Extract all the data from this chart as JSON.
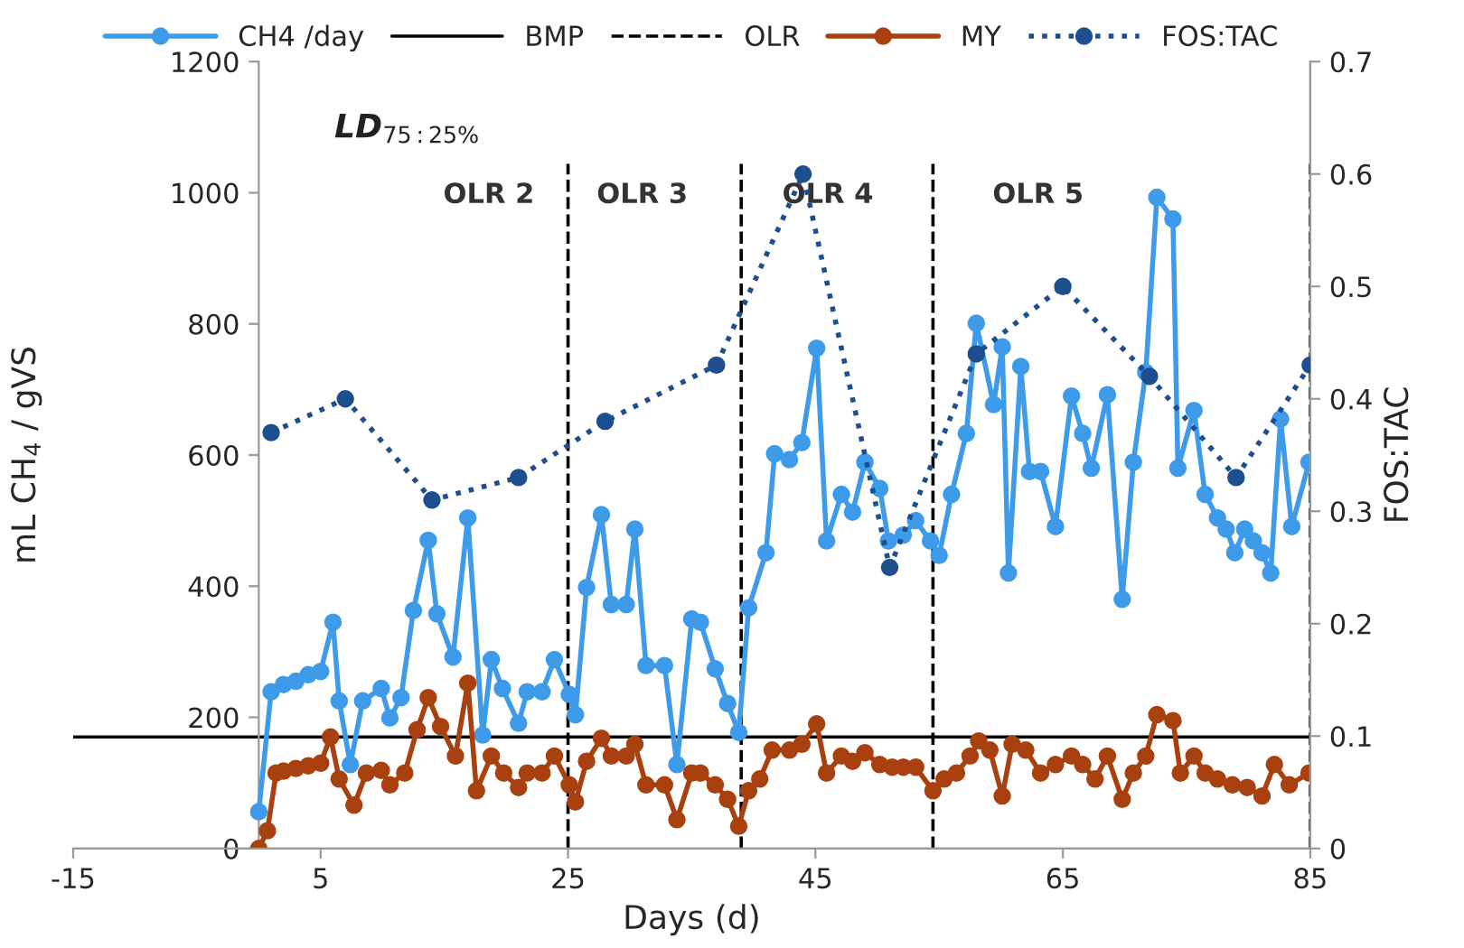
{
  "chart_data": {
    "type": "line",
    "xlabel": "Days (d)",
    "ylabel": "mL CH$_{4}$ / gVS",
    "y2label": "FOS:TAC",
    "xlim": [
      -15,
      85
    ],
    "xticks": [
      -15,
      5,
      25,
      45,
      65,
      85
    ],
    "ylim": [
      0,
      1200
    ],
    "yticks": [
      0,
      200,
      400,
      600,
      800,
      1000,
      1200
    ],
    "y2lim": [
      0,
      0.7
    ],
    "y2ticks": [
      0,
      0.1,
      0.2,
      0.3,
      0.4,
      0.5,
      0.6,
      0.7
    ],
    "grid": false,
    "legend": "top",
    "series": [
      {
        "name": "CH4 /day",
        "color": "#3d9be9",
        "marker": "circle",
        "line_style": "solid",
        "x": [
          0,
          1,
          2,
          3,
          4,
          5,
          6,
          6.5,
          7.4,
          8.4,
          9.9,
          10.6,
          11.5,
          12.5,
          13.7,
          14.4,
          15.7,
          16.9,
          18.1,
          18.8,
          19.7,
          21,
          21.7,
          22.9,
          23.9,
          25.1,
          25.6,
          26.5,
          27.7,
          28.5,
          29.7,
          30.4,
          31.3,
          32.8,
          33.8,
          35,
          35.7,
          36.9,
          37.9,
          38.8,
          39.6,
          41,
          41.7,
          42.9,
          43.9,
          45.1,
          45.9,
          47.1,
          48,
          49,
          50.2,
          50.9,
          52.1,
          53.1,
          54.3,
          55,
          56,
          57.2,
          58,
          59.4,
          60.1,
          60.6,
          61.6,
          62.3,
          63.2,
          64.4,
          65.7,
          66.6,
          67.3,
          68.6,
          69.8,
          70.7,
          71.7,
          72.6,
          73.9,
          74.3,
          75.6,
          76.5,
          77.5,
          78.2,
          78.9,
          79.7,
          80.4,
          81.1,
          81.8,
          82.6,
          83.5,
          84.9
        ],
        "values": [
          56,
          239,
          250,
          255,
          265,
          270,
          345,
          225,
          128,
          225,
          244,
          199,
          230,
          363,
          470,
          358,
          292,
          504,
          173,
          288,
          244,
          191,
          239,
          239,
          288,
          235,
          204,
          398,
          509,
          372,
          372,
          487,
          279,
          279,
          128,
          350,
          345,
          274,
          221,
          177,
          367,
          451,
          602,
          593,
          619,
          763,
          469,
          540,
          513,
          589,
          549,
          469,
          478,
          500,
          469,
          447,
          540,
          633,
          801,
          677,
          765,
          420,
          735,
          575,
          575,
          491,
          690,
          633,
          580,
          692,
          380,
          589,
          726,
          993,
          960,
          580,
          668,
          540,
          504,
          487,
          451,
          487,
          469,
          451,
          420,
          655,
          491,
          589
        ]
      },
      {
        "name": "MY",
        "color": "#a8410f",
        "marker": "circle",
        "line_style": "solid",
        "x": [
          0,
          0.7,
          1.4,
          2,
          3,
          4,
          5,
          5.8,
          6.5,
          7.7,
          8.7,
          9.9,
          10.6,
          11.8,
          12.8,
          13.7,
          14.7,
          15.9,
          16.9,
          17.6,
          18.8,
          19.8,
          21,
          21.7,
          22.9,
          23.9,
          25.1,
          25.6,
          26.5,
          27.7,
          28.5,
          29.7,
          30.4,
          31.3,
          32.8,
          33.8,
          35,
          35.7,
          36.9,
          37.9,
          38.8,
          39.6,
          40.5,
          41.5,
          42.9,
          43.9,
          45.1,
          45.9,
          47.1,
          48,
          49,
          50.2,
          51.2,
          52.1,
          53.1,
          54.5,
          55.4,
          56.4,
          57.5,
          58.2,
          59.1,
          60.1,
          60.9,
          62,
          63.2,
          64.4,
          65.7,
          66.6,
          67.6,
          68.6,
          69.8,
          70.7,
          71.7,
          72.6,
          73.9,
          74.5,
          75.6,
          76.5,
          77.5,
          78.7,
          79.9,
          81.1,
          82.1,
          83.3,
          84.9
        ],
        "values": [
          0,
          27,
          115,
          118,
          122,
          126,
          130,
          170,
          106,
          66,
          115,
          119,
          97,
          115,
          181,
          230,
          186,
          141,
          252,
          88,
          141,
          115,
          93,
          115,
          115,
          141,
          97,
          71,
          133,
          168,
          141,
          141,
          159,
          97,
          97,
          44,
          115,
          115,
          97,
          75,
          34,
          88,
          106,
          150,
          150,
          159,
          190,
          115,
          141,
          133,
          146,
          128,
          124,
          124,
          124,
          88,
          106,
          115,
          141,
          164,
          150,
          80,
          159,
          150,
          115,
          128,
          141,
          128,
          106,
          141,
          75,
          115,
          141,
          204,
          195,
          115,
          141,
          115,
          106,
          97,
          93,
          80,
          128,
          97,
          115
        ]
      },
      {
        "name": "FOS:TAC",
        "color": "#1d4f8f",
        "marker": "circle",
        "line_style": "dotted",
        "axis": "y2",
        "x": [
          1,
          7,
          14,
          21,
          28,
          37,
          44,
          51,
          58,
          65,
          72,
          79,
          85
        ],
        "values": [
          0.37,
          0.4,
          0.31,
          0.33,
          0.38,
          0.43,
          0.6,
          0.25,
          0.44,
          0.5,
          0.42,
          0.33,
          0.43
        ]
      }
    ],
    "ref_lines": [
      {
        "axis": "y",
        "value": 170,
        "label": "BMP",
        "color": "#000000",
        "line_style": "solid"
      },
      {
        "axis": "x",
        "value": 25,
        "label": "OLR",
        "color": "#000000",
        "line_style": "dashed"
      },
      {
        "axis": "x",
        "value": 39,
        "label": null,
        "color": "#000000",
        "line_style": "dashed"
      },
      {
        "axis": "x",
        "value": 54.5,
        "label": null,
        "color": "#000000",
        "line_style": "dashed"
      },
      {
        "axis": "x",
        "value": 85,
        "label": null,
        "color": "#000000",
        "line_style": "dashed"
      }
    ],
    "annotations": [
      "LD$_{75:25%}$",
      "OLR 2",
      "OLR 3",
      "OLR 4",
      "OLR 5"
    ]
  }
}
